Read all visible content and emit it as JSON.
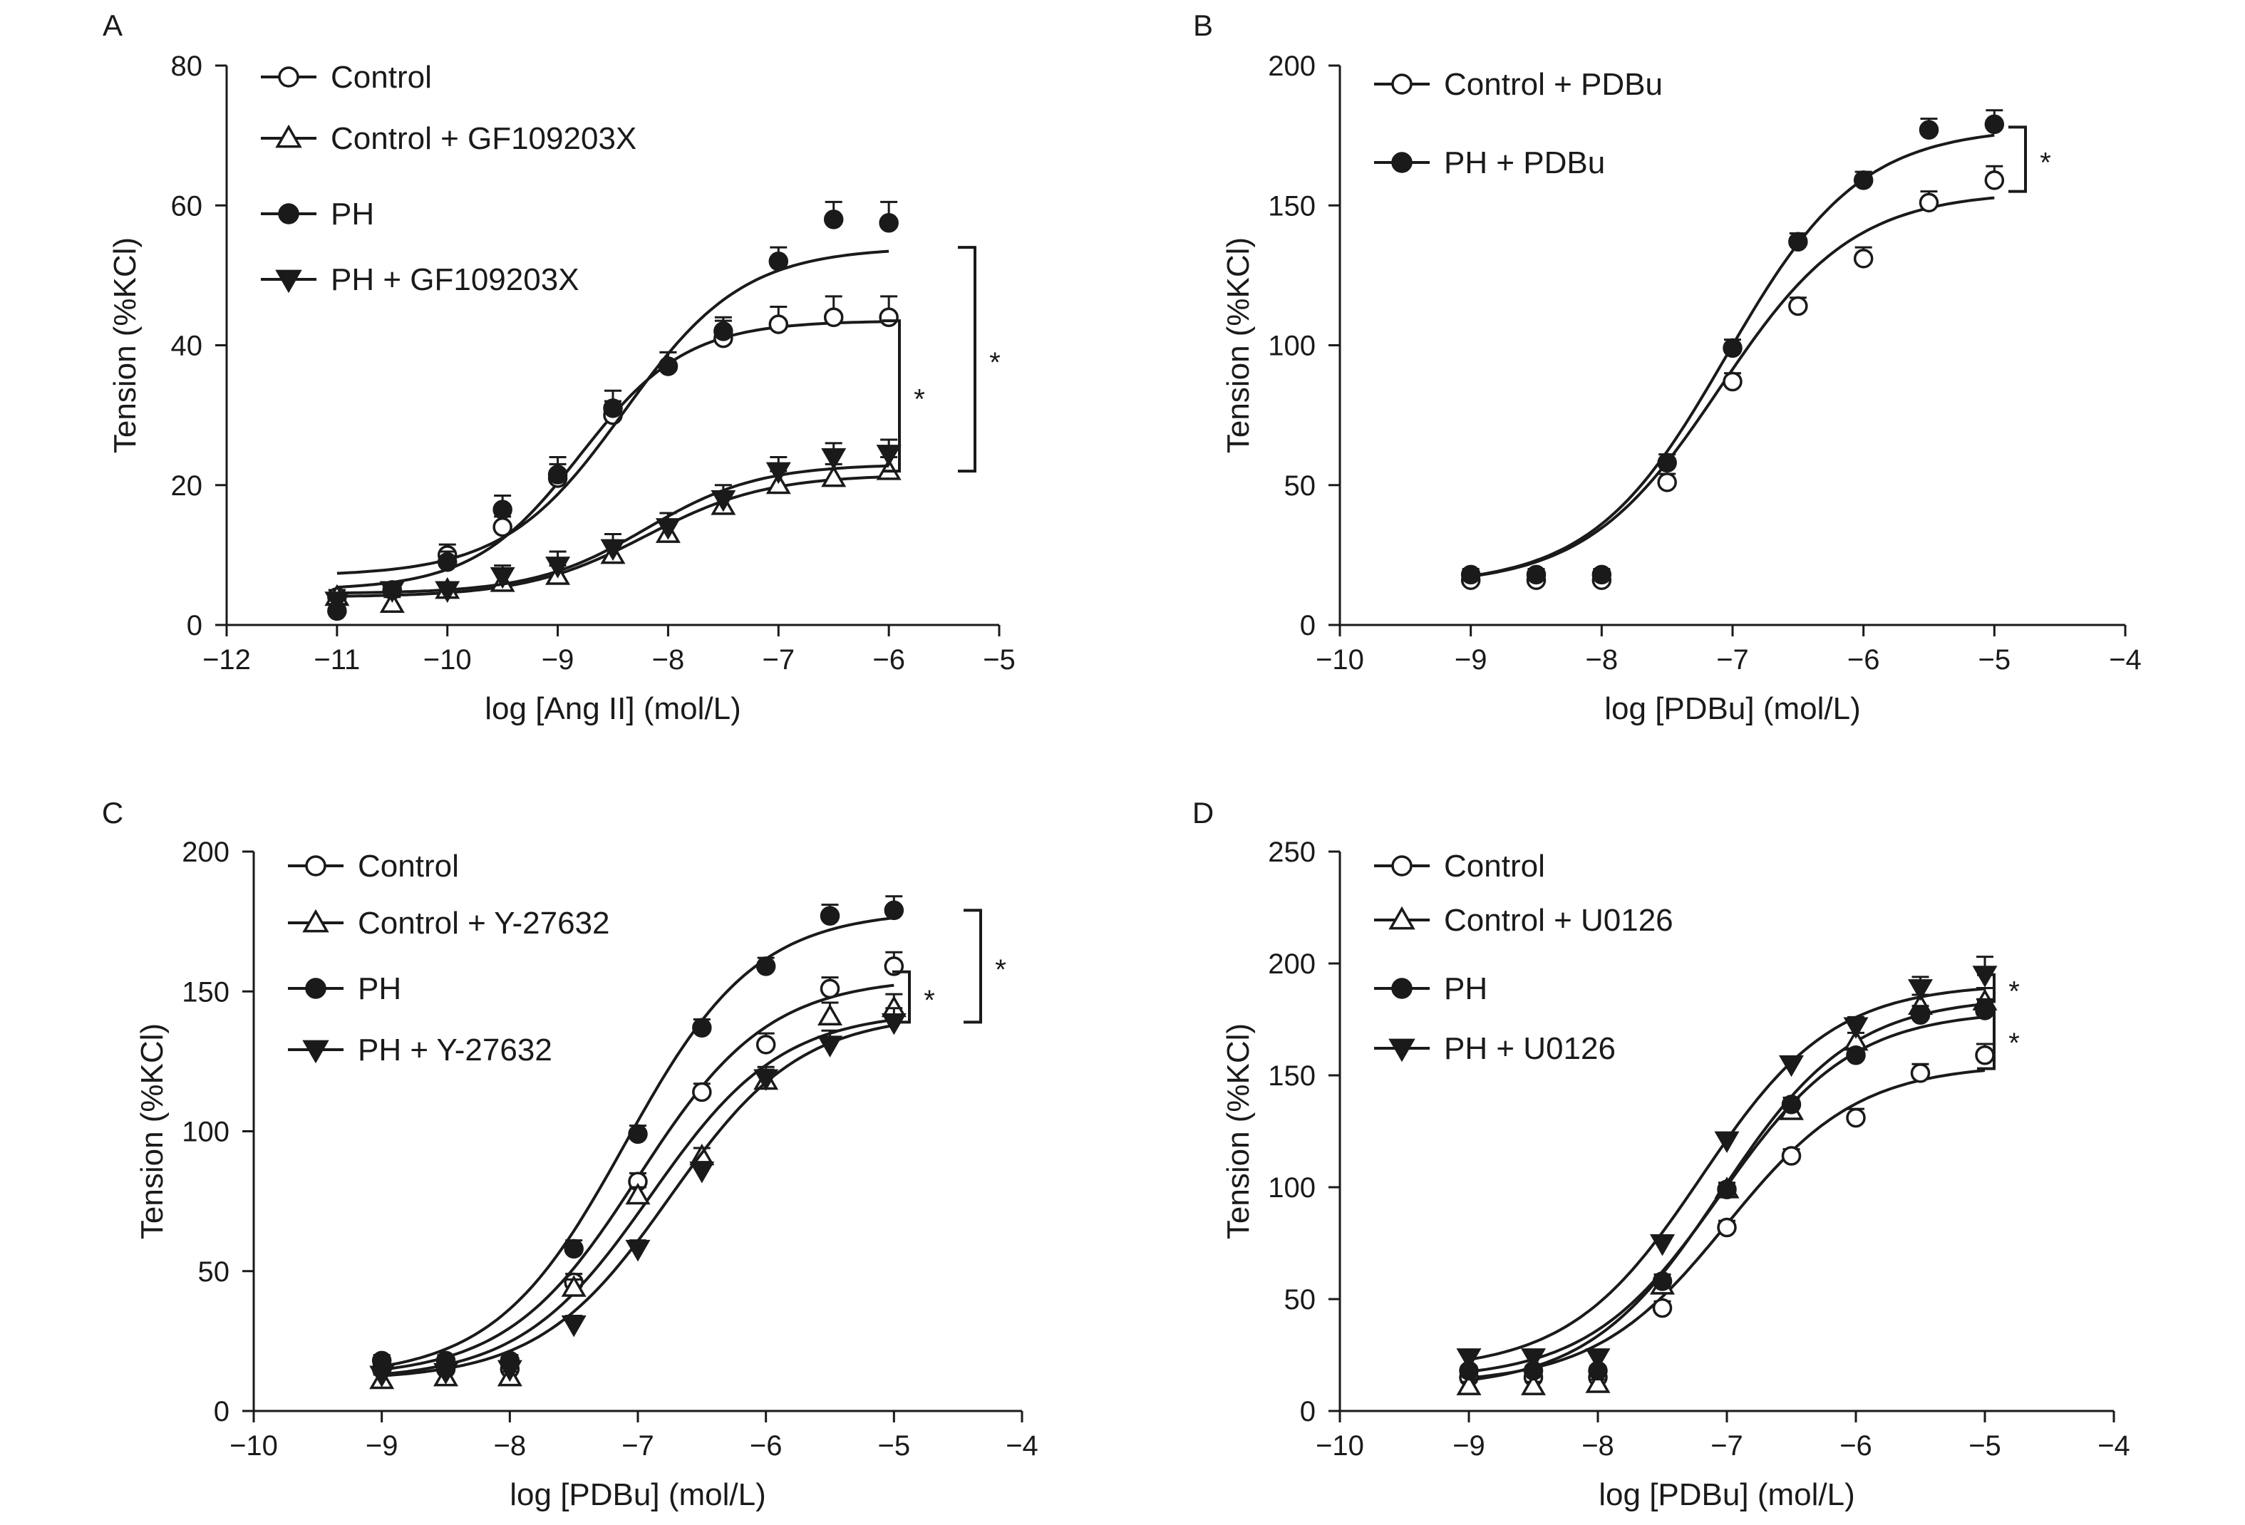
{
  "chart_data": [
    {
      "panel": "A",
      "type": "line",
      "xlabel": "log [Ang II] (mol/L)",
      "ylabel": "Tension (%KCl)",
      "xlim": [
        -12,
        -5
      ],
      "ylim": [
        0,
        80
      ],
      "xticks": [
        -12,
        -11,
        -10,
        -9,
        -8,
        -7,
        -6,
        -5
      ],
      "yticks": [
        0,
        20,
        40,
        60,
        80
      ],
      "legend_placement": "top-left",
      "series": [
        {
          "name": "Control",
          "marker": "open-circle",
          "x": [
            -11,
            -10.5,
            -10,
            -9.5,
            -9,
            -8.5,
            -8,
            -7.5,
            -7,
            -6.5,
            -6
          ],
          "y": [
            4,
            5,
            10,
            14,
            21,
            30,
            37,
            41,
            43,
            44,
            44
          ],
          "err": [
            1,
            1,
            1.5,
            1.5,
            2,
            2,
            2,
            2.5,
            2.5,
            3,
            3
          ],
          "fit": {
            "bottom": 5,
            "top": 43.5,
            "logEC50": -8.8,
            "hill": 0.9
          }
        },
        {
          "name": "Control + GF109203X",
          "marker": "open-triangle-up",
          "x": [
            -11,
            -10.5,
            -10,
            -9.5,
            -9,
            -8.5,
            -8,
            -7.5,
            -7,
            -6.5,
            -6
          ],
          "y": [
            4,
            3,
            5,
            6,
            7,
            10,
            13,
            17,
            20,
            21,
            22
          ],
          "err": [
            1,
            1,
            1,
            1.5,
            1.5,
            1.5,
            2,
            2,
            2,
            2,
            2
          ],
          "fit": {
            "bottom": 4,
            "top": 21.5,
            "logEC50": -8.2,
            "hill": 0.8
          }
        },
        {
          "name": "PH",
          "marker": "filled-circle",
          "x": [
            -11,
            -10.5,
            -10,
            -9.5,
            -9,
            -8.5,
            -8,
            -7.5,
            -7,
            -6.5,
            -6
          ],
          "y": [
            2,
            5,
            9,
            16.5,
            21.5,
            31,
            37,
            42,
            52,
            58,
            57.5
          ],
          "err": [
            1,
            1,
            1.5,
            2,
            2.5,
            2.5,
            2,
            2,
            2,
            2.5,
            3
          ],
          "fit": {
            "bottom": 7,
            "top": 54,
            "logEC50": -8.4,
            "hill": 0.8
          }
        },
        {
          "name": "PH + GF109203X",
          "marker": "filled-triangle-down",
          "x": [
            -11,
            -10.5,
            -10,
            -9.5,
            -9,
            -8.5,
            -8,
            -7.5,
            -7,
            -6.5,
            -6
          ],
          "y": [
            3.5,
            5,
            5,
            7,
            8.5,
            11,
            14,
            18,
            22,
            24,
            24.5
          ],
          "err": [
            1,
            1,
            1,
            1.5,
            2,
            2,
            2,
            2,
            2,
            2,
            2
          ],
          "fit": {
            "bottom": 4.5,
            "top": 23,
            "logEC50": -8.2,
            "hill": 0.85
          }
        }
      ],
      "significance": [
        {
          "label": "*",
          "between": [
            22,
            43.5
          ]
        },
        {
          "label": "*",
          "between": [
            22,
            54
          ]
        }
      ]
    },
    {
      "panel": "B",
      "type": "line",
      "xlabel": "log [PDBu] (mol/L)",
      "ylabel": "Tension (%KCl)",
      "xlim": [
        -10,
        -4
      ],
      "ylim": [
        0,
        200
      ],
      "xticks": [
        -10,
        -9,
        -8,
        -7,
        -6,
        -5,
        -4
      ],
      "yticks": [
        0,
        50,
        100,
        150,
        200
      ],
      "legend_placement": "top-left",
      "series": [
        {
          "name": "Control + PDBu",
          "marker": "open-circle",
          "x": [
            -9,
            -8.5,
            -8,
            -7.5,
            -7,
            -6.5,
            -6,
            -5.5,
            -5
          ],
          "y": [
            16,
            16,
            16,
            51,
            87,
            114,
            131,
            151,
            159
          ],
          "err": [
            2,
            2,
            2,
            3,
            3,
            3,
            4,
            4,
            5
          ],
          "fit": {
            "bottom": 14,
            "top": 155,
            "logEC50": -7.1,
            "hill": 0.85
          }
        },
        {
          "name": "PH + PDBu",
          "marker": "filled-circle",
          "x": [
            -9,
            -8.5,
            -8,
            -7.5,
            -7,
            -6.5,
            -6,
            -5.5,
            -5
          ],
          "y": [
            18,
            18,
            18,
            58,
            99,
            137,
            159,
            177,
            179
          ],
          "err": [
            2,
            2,
            2,
            3,
            3,
            3,
            3,
            4,
            5
          ],
          "fit": {
            "bottom": 14,
            "top": 178,
            "logEC50": -7.05,
            "hill": 0.85
          }
        }
      ],
      "significance": [
        {
          "label": "*",
          "between": [
            155,
            178
          ]
        }
      ]
    },
    {
      "panel": "C",
      "type": "line",
      "xlabel": "log [PDBu] (mol/L)",
      "ylabel": "Tension (%KCl)",
      "xlim": [
        -10,
        -4
      ],
      "ylim": [
        0,
        200
      ],
      "xticks": [
        -10,
        -9,
        -8,
        -7,
        -6,
        -5,
        -4
      ],
      "yticks": [
        0,
        50,
        100,
        150,
        200
      ],
      "legend_placement": "top-left",
      "series": [
        {
          "name": "Control",
          "marker": "open-circle",
          "x": [
            -9,
            -8.5,
            -8,
            -7.5,
            -7,
            -6.5,
            -6,
            -5.5,
            -5
          ],
          "y": [
            15,
            15,
            15,
            46,
            82,
            114,
            131,
            151,
            159
          ],
          "err": [
            2,
            2,
            2,
            3,
            3,
            3,
            4,
            4,
            5
          ],
          "fit": {
            "bottom": 12,
            "top": 155,
            "logEC50": -7.0,
            "hill": 0.85
          }
        },
        {
          "name": "Control + Y-27632",
          "marker": "open-triangle-up",
          "x": [
            -9,
            -8.5,
            -8,
            -7.5,
            -7,
            -6.5,
            -6,
            -5.5,
            -5
          ],
          "y": [
            11,
            12,
            12,
            44,
            77,
            91,
            118,
            141,
            144
          ],
          "err": [
            2,
            2,
            2,
            3,
            3,
            3,
            4,
            5,
            5
          ],
          "fit": {
            "bottom": 11,
            "top": 143,
            "logEC50": -6.9,
            "hill": 0.85
          }
        },
        {
          "name": "PH",
          "marker": "filled-circle",
          "x": [
            -9,
            -8.5,
            -8,
            -7.5,
            -7,
            -6.5,
            -6,
            -5.5,
            -5
          ],
          "y": [
            18,
            18,
            18,
            58,
            99,
            137,
            159,
            177,
            179
          ],
          "err": [
            2,
            2,
            2,
            3,
            3,
            3,
            3,
            4,
            5
          ],
          "fit": {
            "bottom": 12,
            "top": 179,
            "logEC50": -7.1,
            "hill": 0.85
          }
        },
        {
          "name": "PH + Y-27632",
          "marker": "filled-triangle-down",
          "x": [
            -9,
            -8.5,
            -8,
            -7.5,
            -7,
            -6.5,
            -6,
            -5.5,
            -5
          ],
          "y": [
            13,
            14,
            15,
            31,
            58,
            86,
            119,
            131,
            139
          ],
          "err": [
            2,
            2,
            2,
            3,
            3,
            3,
            4,
            5,
            5
          ],
          "fit": {
            "bottom": 11,
            "top": 142,
            "logEC50": -6.75,
            "hill": 0.85
          }
        }
      ],
      "significance": [
        {
          "label": "*",
          "between": [
            139,
            157
          ]
        },
        {
          "label": "*",
          "between": [
            139,
            179
          ]
        }
      ]
    },
    {
      "panel": "D",
      "type": "line",
      "xlabel": "log [PDBu] (mol/L)",
      "ylabel": "Tension (%KCl)",
      "xlim": [
        -10,
        -4
      ],
      "ylim": [
        0,
        250
      ],
      "xticks": [
        -10,
        -9,
        -8,
        -7,
        -6,
        -5,
        -4
      ],
      "yticks": [
        0,
        50,
        100,
        150,
        200,
        250
      ],
      "legend_placement": "top-left",
      "series": [
        {
          "name": "Control",
          "marker": "open-circle",
          "x": [
            -9,
            -8.5,
            -8,
            -7.5,
            -7,
            -6.5,
            -6,
            -5.5,
            -5
          ],
          "y": [
            15,
            15,
            15,
            46,
            82,
            114,
            131,
            151,
            159
          ],
          "err": [
            2,
            2,
            2,
            3,
            3,
            3,
            4,
            4,
            5
          ],
          "fit": {
            "bottom": 12,
            "top": 155,
            "logEC50": -7.0,
            "hill": 0.85
          }
        },
        {
          "name": "Control + U0126",
          "marker": "open-triangle-up",
          "x": [
            -9,
            -8.5,
            -8,
            -7.5,
            -7,
            -6.5,
            -6,
            -5.5,
            -5
          ],
          "y": [
            11,
            11,
            12,
            56,
            99,
            134,
            165,
            181,
            183
          ],
          "err": [
            2,
            2,
            2,
            3,
            3,
            4,
            4,
            5,
            6
          ],
          "fit": {
            "bottom": 10,
            "top": 185,
            "logEC50": -7.05,
            "hill": 0.85
          }
        },
        {
          "name": "PH",
          "marker": "filled-circle",
          "x": [
            -9,
            -8.5,
            -8,
            -7.5,
            -7,
            -6.5,
            -6,
            -5.5,
            -5
          ],
          "y": [
            18,
            18,
            18,
            58,
            99,
            137,
            159,
            177,
            179
          ],
          "err": [
            2,
            2,
            2,
            3,
            3,
            3,
            3,
            4,
            5
          ],
          "fit": {
            "bottom": 14,
            "top": 179,
            "logEC50": -7.05,
            "hill": 0.85
          }
        },
        {
          "name": "PH + U0126",
          "marker": "filled-triangle-down",
          "x": [
            -9,
            -8.5,
            -8,
            -7.5,
            -7,
            -6.5,
            -6,
            -5.5,
            -5
          ],
          "y": [
            24,
            24,
            24,
            75,
            121,
            155,
            172,
            189,
            195
          ],
          "err": [
            2,
            2,
            2,
            3,
            3,
            3,
            4,
            5,
            8
          ],
          "fit": {
            "bottom": 18,
            "top": 191,
            "logEC50": -7.2,
            "hill": 0.85
          }
        }
      ],
      "significance": [
        {
          "label": "*",
          "between": [
            183,
            195
          ]
        },
        {
          "label": "*",
          "between": [
            153,
            179
          ]
        }
      ]
    }
  ]
}
